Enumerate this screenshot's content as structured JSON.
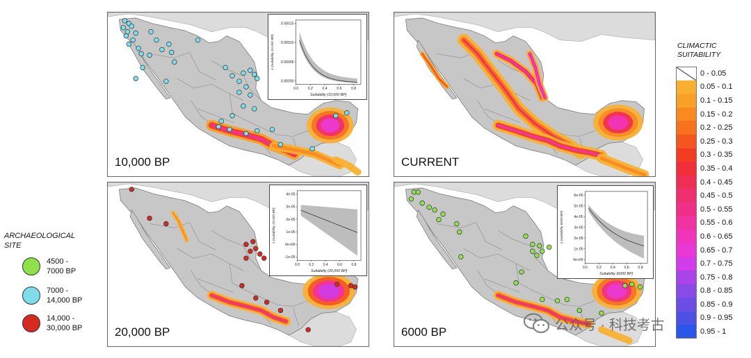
{
  "panels": [
    {
      "id": "p10k",
      "label": "10,000 BP",
      "site_color": "#7fdcea",
      "inset": {
        "ylabel": "λ (suitability 10,000 BP)",
        "xlabel": "Suitability (10,000 BP)",
        "yticks": [
          "0.00000",
          "0.00005",
          "0.00010",
          "0.00015"
        ],
        "xticks": [
          "0.0",
          "0.2",
          "0.4",
          "0.6",
          "0.8"
        ]
      }
    },
    {
      "id": "pcur",
      "label": "CURRENT"
    },
    {
      "id": "p20k",
      "label": "20,000 BP",
      "site_color": "#d42a20",
      "inset": {
        "ylabel": "λ (suitability 20,000 BP)",
        "xlabel": "Suitability (20,000 BP)",
        "yticks": [
          "-1e-05",
          "0e+00",
          "1e-05",
          "2e-05",
          "3e-05",
          "4e-05"
        ],
        "xticks": [
          "0.0",
          "0.2",
          "0.4",
          "0.6",
          "0.8"
        ]
      }
    },
    {
      "id": "p6k",
      "label": "6000 BP",
      "site_color": "#8fe04a",
      "inset": {
        "ylabel": "λ (suitability 6000 BP)",
        "xlabel": "Suitability (6000 BP)",
        "yticks": [
          "0e+00",
          "1e-05",
          "2e-05",
          "3e-05",
          "4e-05",
          "5e-05",
          "6e-05"
        ],
        "xticks": [
          "0.0",
          "0.2",
          "0.4",
          "0.6",
          "0.8"
        ]
      }
    }
  ],
  "climatic_legend": {
    "title_line1": "CLIMACTIC",
    "title_line2": "SUITABILITY",
    "items": [
      {
        "label": "0 - 0.05",
        "color": "#ffffff"
      },
      {
        "label": "0.05 - 0.1",
        "color": "#f9b030"
      },
      {
        "label": "0.1 - 0.15",
        "color": "#f9a026"
      },
      {
        "label": "0.15 - 0.2",
        "color": "#f98a22"
      },
      {
        "label": "0.2 - 0.25",
        "color": "#f7711f"
      },
      {
        "label": "0.25 - 0.3",
        "color": "#f5561f"
      },
      {
        "label": "0.3 - 0.35",
        "color": "#f33c22"
      },
      {
        "label": "0.35 - 0.4",
        "color": "#f12e3a"
      },
      {
        "label": "0.4 - 0.45",
        "color": "#ef2e56"
      },
      {
        "label": "0.45 - 0.5",
        "color": "#ef2f70"
      },
      {
        "label": "0.5 - 0.55",
        "color": "#f03088"
      },
      {
        "label": "0.55 - 0.6",
        "color": "#f032a2"
      },
      {
        "label": "0.6 - 0.65",
        "color": "#f034bc"
      },
      {
        "label": "0.65 - 0.7",
        "color": "#ea38d6"
      },
      {
        "label": "0.7 - 0.75",
        "color": "#d03ce8"
      },
      {
        "label": "0.75 - 0.8",
        "color": "#a844ea"
      },
      {
        "label": "0.8 - 0.85",
        "color": "#8a4ae8"
      },
      {
        "label": "0.85 - 0.9",
        "color": "#6c4ee6"
      },
      {
        "label": "0.9 - 0.95",
        "color": "#4c52e6"
      },
      {
        "label": "0.95 - 1",
        "color": "#2a56ea"
      }
    ]
  },
  "archaeological_legend": {
    "title_line1": "ARCHAEOLOGICAL",
    "title_line2": "SITE",
    "items": [
      {
        "line1": "4500 -",
        "line2": "7000 BP",
        "color": "#8fe04a"
      },
      {
        "line1": "7000 -",
        "line2": "14,000 BP",
        "color": "#7fdcea"
      },
      {
        "line1": "14,000 -",
        "line2": "30,000 BP",
        "color": "#d42a20"
      }
    ]
  },
  "watermark": {
    "text": "公众号 · 科技考古"
  }
}
